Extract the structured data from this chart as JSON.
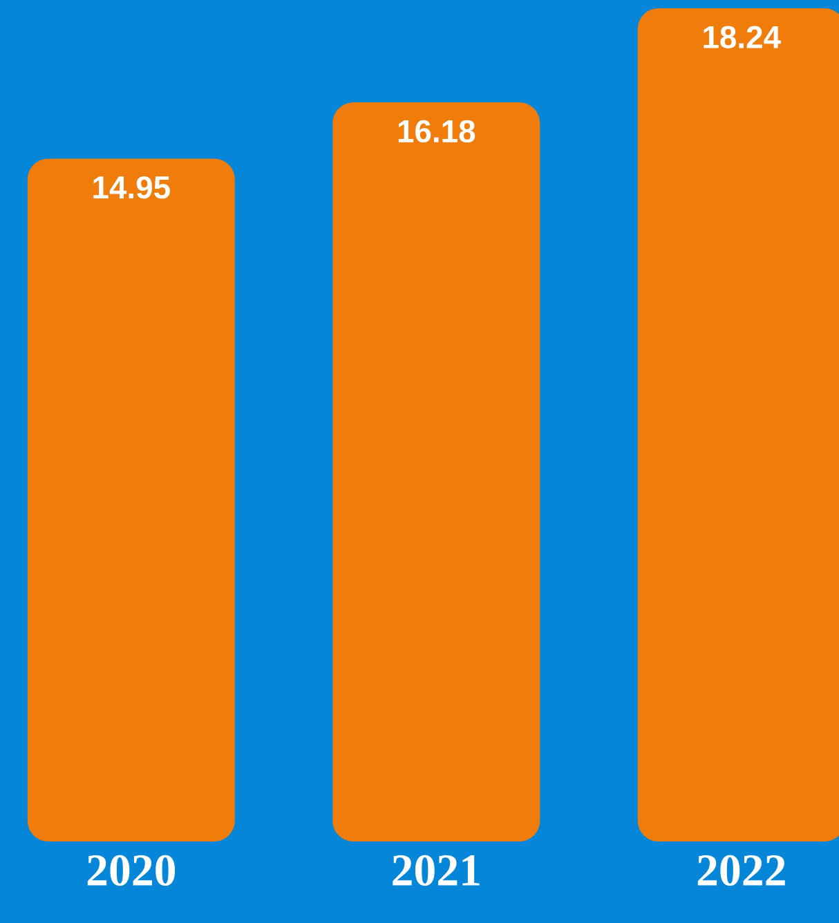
{
  "chart_data": {
    "type": "bar",
    "categories": [
      "2020",
      "2021",
      "2022"
    ],
    "values": [
      14.95,
      16.18,
      18.24
    ],
    "color": "#f07c0c",
    "data_labels": true
  }
}
